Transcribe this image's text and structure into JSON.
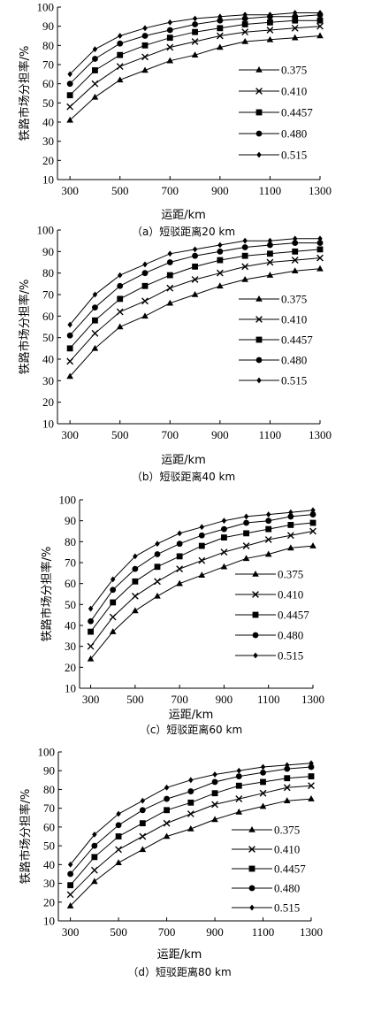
{
  "chart_data": [
    {
      "type": "line",
      "ylabel": "铁路市场分担率/%",
      "xlabel": "运距/km",
      "caption": "（a）短驳距离20 km",
      "xlim": [
        250,
        1300
      ],
      "ylim": [
        10,
        100
      ],
      "xticks": [
        300,
        500,
        700,
        900,
        1100,
        1300
      ],
      "yticks": [
        10,
        20,
        30,
        40,
        50,
        60,
        70,
        80,
        90,
        100
      ],
      "legend_position": "right",
      "x": [
        300,
        400,
        500,
        600,
        700,
        800,
        900,
        1000,
        1100,
        1200,
        1300
      ],
      "series": [
        {
          "name": "0.375",
          "marker": "triangle",
          "values": [
            41,
            53,
            62,
            67,
            72,
            75,
            79,
            82,
            83,
            84,
            85
          ]
        },
        {
          "name": "0.410",
          "marker": "cross",
          "values": [
            48,
            60,
            69,
            74,
            79,
            82,
            85,
            87,
            88,
            89,
            90
          ]
        },
        {
          "name": "0.4457",
          "marker": "square",
          "values": [
            54,
            67,
            75,
            80,
            84,
            87,
            89,
            91,
            92,
            93,
            93
          ]
        },
        {
          "name": "0.480",
          "marker": "circle",
          "values": [
            60,
            73,
            81,
            85,
            88,
            91,
            93,
            94,
            95,
            95,
            96
          ]
        },
        {
          "name": "0.515",
          "marker": "diamond",
          "values": [
            65,
            78,
            85,
            89,
            92,
            94,
            95,
            96,
            96,
            97,
            97
          ]
        }
      ]
    },
    {
      "type": "line",
      "ylabel": "铁路市场分担率/%",
      "xlabel": "运距/km",
      "caption": "（b）短驳距离40 km",
      "xlim": [
        250,
        1300
      ],
      "ylim": [
        10,
        100
      ],
      "xticks": [
        300,
        500,
        700,
        900,
        1100,
        1300
      ],
      "yticks": [
        10,
        20,
        30,
        40,
        50,
        60,
        70,
        80,
        90,
        100
      ],
      "legend_position": "right",
      "x": [
        300,
        400,
        500,
        600,
        700,
        800,
        900,
        1000,
        1100,
        1200,
        1300
      ],
      "series": [
        {
          "name": "0.375",
          "marker": "triangle",
          "values": [
            32,
            45,
            55,
            60,
            66,
            70,
            74,
            77,
            79,
            81,
            82
          ]
        },
        {
          "name": "0.410",
          "marker": "cross",
          "values": [
            39,
            52,
            62,
            67,
            73,
            77,
            80,
            83,
            85,
            86,
            87
          ]
        },
        {
          "name": "0.4457",
          "marker": "square",
          "values": [
            45,
            58,
            68,
            74,
            79,
            83,
            86,
            88,
            89,
            90,
            91
          ]
        },
        {
          "name": "0.480",
          "marker": "circle",
          "values": [
            51,
            64,
            74,
            80,
            85,
            88,
            90,
            92,
            93,
            94,
            94
          ]
        },
        {
          "name": "0.515",
          "marker": "diamond",
          "values": [
            56,
            70,
            79,
            84,
            89,
            91,
            93,
            95,
            95,
            96,
            96
          ]
        }
      ]
    },
    {
      "type": "line",
      "ylabel": "铁路市场分担率/%",
      "xlabel": "运距/km",
      "caption": "（c）短驳距离60 km",
      "xlim": [
        250,
        1300
      ],
      "ylim": [
        10,
        100
      ],
      "xticks": [
        300,
        500,
        700,
        900,
        1100,
        1300
      ],
      "yticks": [
        10,
        20,
        30,
        40,
        50,
        60,
        70,
        80,
        90,
        100
      ],
      "legend_position": "right",
      "x": [
        300,
        400,
        500,
        600,
        700,
        800,
        900,
        1000,
        1100,
        1200,
        1300
      ],
      "series": [
        {
          "name": "0.375",
          "marker": "triangle",
          "values": [
            24,
            37,
            47,
            54,
            60,
            64,
            68,
            72,
            74,
            77,
            78
          ]
        },
        {
          "name": "0.410",
          "marker": "cross",
          "values": [
            30,
            44,
            54,
            61,
            67,
            71,
            75,
            78,
            81,
            83,
            85
          ]
        },
        {
          "name": "0.4457",
          "marker": "square",
          "values": [
            37,
            51,
            61,
            68,
            73,
            78,
            82,
            84,
            86,
            88,
            89
          ]
        },
        {
          "name": "0.480",
          "marker": "circle",
          "values": [
            42,
            57,
            67,
            74,
            79,
            83,
            86,
            89,
            90,
            92,
            93
          ]
        },
        {
          "name": "0.515",
          "marker": "diamond",
          "values": [
            48,
            62,
            73,
            79,
            84,
            87,
            90,
            92,
            93,
            94,
            95
          ]
        }
      ]
    },
    {
      "type": "line",
      "ylabel": "铁路市场分担率/%",
      "xlabel": "运距/km",
      "caption": "（d）短驳距离80 km",
      "xlim": [
        250,
        1300
      ],
      "ylim": [
        10,
        100
      ],
      "xticks": [
        300,
        500,
        700,
        900,
        1100,
        1300
      ],
      "yticks": [
        10,
        20,
        30,
        40,
        50,
        60,
        70,
        80,
        90,
        100
      ],
      "legend_position": "right",
      "x": [
        300,
        400,
        500,
        600,
        700,
        800,
        900,
        1000,
        1100,
        1200,
        1300
      ],
      "series": [
        {
          "name": "0.375",
          "marker": "triangle",
          "values": [
            18,
            31,
            41,
            48,
            55,
            59,
            64,
            68,
            71,
            74,
            75
          ]
        },
        {
          "name": "0.410",
          "marker": "cross",
          "values": [
            24,
            37,
            48,
            55,
            62,
            67,
            72,
            75,
            78,
            81,
            82
          ]
        },
        {
          "name": "0.4457",
          "marker": "square",
          "values": [
            29,
            44,
            55,
            62,
            69,
            73,
            78,
            82,
            84,
            86,
            87
          ]
        },
        {
          "name": "0.480",
          "marker": "circle",
          "values": [
            35,
            50,
            61,
            69,
            75,
            79,
            84,
            87,
            89,
            91,
            92
          ]
        },
        {
          "name": "0.515",
          "marker": "diamond",
          "values": [
            40,
            56,
            67,
            74,
            81,
            85,
            88,
            90,
            92,
            93,
            94
          ]
        }
      ]
    }
  ]
}
